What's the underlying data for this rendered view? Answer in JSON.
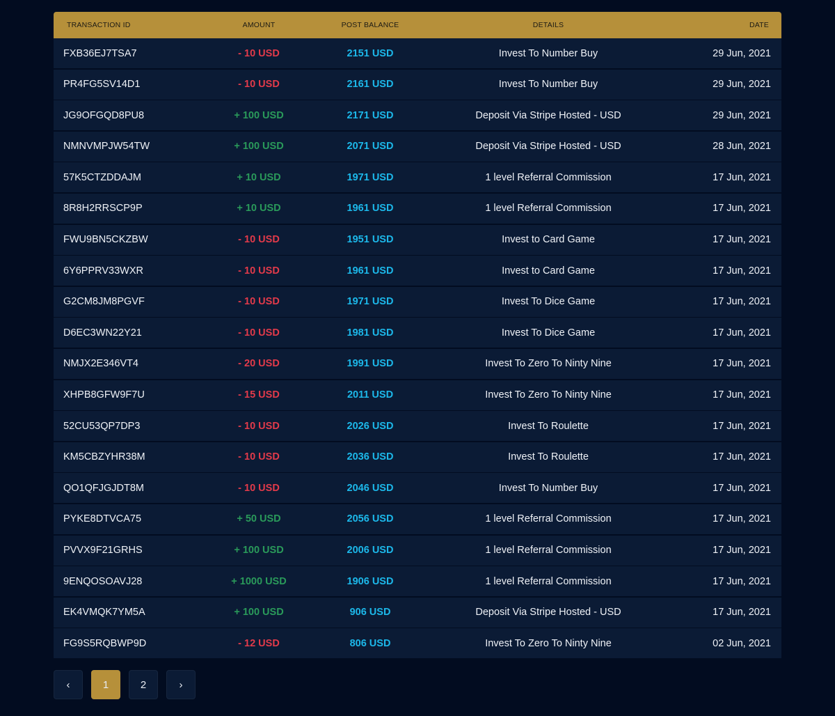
{
  "table": {
    "headers": {
      "id": "TRANSACTION ID",
      "amount": "AMOUNT",
      "balance": "POST BALANCE",
      "details": "DETAILS",
      "date": "DATE"
    },
    "rows": [
      {
        "id": "FXB36EJ7TSA7",
        "amount": "- 10 USD",
        "type": "neg",
        "balance": "2151 USD",
        "details": "Invest To Number Buy",
        "date": "29 Jun, 2021"
      },
      {
        "id": "PR4FG5SV14D1",
        "amount": "- 10 USD",
        "type": "neg",
        "balance": "2161 USD",
        "details": "Invest To Number Buy",
        "date": "29 Jun, 2021"
      },
      {
        "id": "JG9OFGQD8PU8",
        "amount": "+ 100 USD",
        "type": "pos",
        "balance": "2171 USD",
        "details": "Deposit Via Stripe Hosted - USD",
        "date": "29 Jun, 2021"
      },
      {
        "id": "NMNVMPJW54TW",
        "amount": "+ 100 USD",
        "type": "pos",
        "balance": "2071 USD",
        "details": "Deposit Via Stripe Hosted - USD",
        "date": "28 Jun, 2021"
      },
      {
        "id": "57K5CTZDDAJM",
        "amount": "+ 10 USD",
        "type": "pos",
        "balance": "1971 USD",
        "details": "1 level Referral Commission",
        "date": "17 Jun, 2021"
      },
      {
        "id": "8R8H2RRSCP9P",
        "amount": "+ 10 USD",
        "type": "pos",
        "balance": "1961 USD",
        "details": "1 level Referral Commission",
        "date": "17 Jun, 2021"
      },
      {
        "id": "FWU9BN5CKZBW",
        "amount": "- 10 USD",
        "type": "neg",
        "balance": "1951 USD",
        "details": "Invest to Card Game",
        "date": "17 Jun, 2021"
      },
      {
        "id": "6Y6PPRV33WXR",
        "amount": "- 10 USD",
        "type": "neg",
        "balance": "1961 USD",
        "details": "Invest to Card Game",
        "date": "17 Jun, 2021"
      },
      {
        "id": "G2CM8JM8PGVF",
        "amount": "- 10 USD",
        "type": "neg",
        "balance": "1971 USD",
        "details": "Invest To Dice Game",
        "date": "17 Jun, 2021"
      },
      {
        "id": "D6EC3WN22Y21",
        "amount": "- 10 USD",
        "type": "neg",
        "balance": "1981 USD",
        "details": "Invest To Dice Game",
        "date": "17 Jun, 2021"
      },
      {
        "id": "NMJX2E346VT4",
        "amount": "- 20 USD",
        "type": "neg",
        "balance": "1991 USD",
        "details": "Invest To Zero To Ninty Nine",
        "date": "17 Jun, 2021"
      },
      {
        "id": "XHPB8GFW9F7U",
        "amount": "- 15 USD",
        "type": "neg",
        "balance": "2011 USD",
        "details": "Invest To Zero To Ninty Nine",
        "date": "17 Jun, 2021"
      },
      {
        "id": "52CU53QP7DP3",
        "amount": "- 10 USD",
        "type": "neg",
        "balance": "2026 USD",
        "details": "Invest To Roulette",
        "date": "17 Jun, 2021"
      },
      {
        "id": "KM5CBZYHR38M",
        "amount": "- 10 USD",
        "type": "neg",
        "balance": "2036 USD",
        "details": "Invest To Roulette",
        "date": "17 Jun, 2021"
      },
      {
        "id": "QO1QFJGJDT8M",
        "amount": "- 10 USD",
        "type": "neg",
        "balance": "2046 USD",
        "details": "Invest To Number Buy",
        "date": "17 Jun, 2021"
      },
      {
        "id": "PYKE8DTVCA75",
        "amount": "+ 50 USD",
        "type": "pos",
        "balance": "2056 USD",
        "details": "1 level Referral Commission",
        "date": "17 Jun, 2021"
      },
      {
        "id": "PVVX9F21GRHS",
        "amount": "+ 100 USD",
        "type": "pos",
        "balance": "2006 USD",
        "details": "1 level Referral Commission",
        "date": "17 Jun, 2021"
      },
      {
        "id": "9ENQOSOAVJ28",
        "amount": "+ 1000 USD",
        "type": "pos",
        "balance": "1906 USD",
        "details": "1 level Referral Commission",
        "date": "17 Jun, 2021"
      },
      {
        "id": "EK4VMQK7YM5A",
        "amount": "+ 100 USD",
        "type": "pos",
        "balance": "906 USD",
        "details": "Deposit Via Stripe Hosted - USD",
        "date": "17 Jun, 2021"
      },
      {
        "id": "FG9S5RQBWP9D",
        "amount": "- 12 USD",
        "type": "neg",
        "balance": "806 USD",
        "details": "Invest To Zero To Ninty Nine",
        "date": "02 Jun, 2021"
      }
    ]
  },
  "pagination": {
    "prev": "‹",
    "pages": [
      "1",
      "2"
    ],
    "current": "1",
    "next": "›"
  },
  "colors": {
    "accent": "#b6903a",
    "negative": "#e23a4a",
    "positive": "#2a9a5a",
    "balance": "#1cb8ea"
  }
}
